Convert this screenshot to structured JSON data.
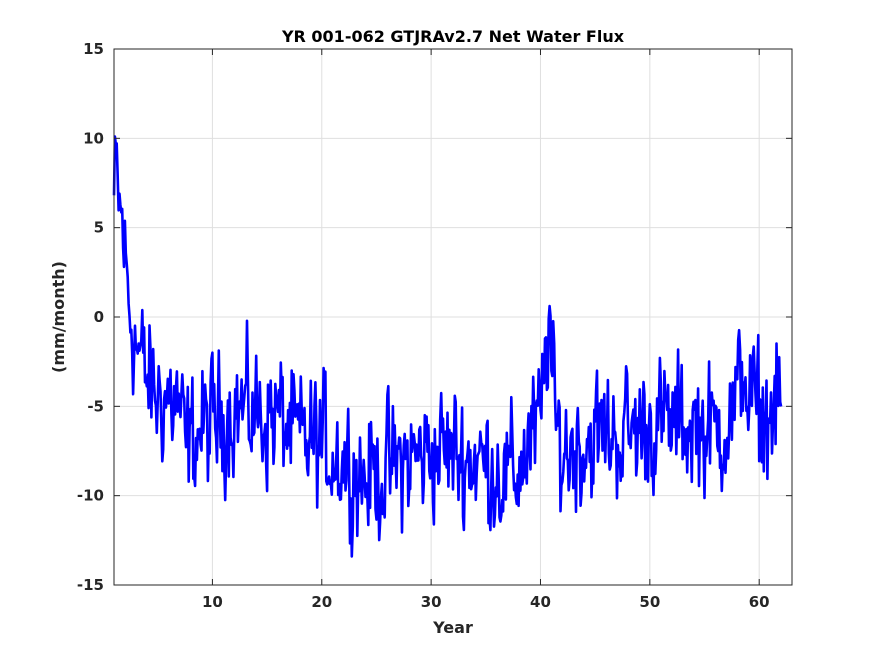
{
  "chart_data": {
    "type": "line",
    "title": "YR 001-062 GTJRAv2.7 Net Water Flux",
    "xlabel": "Year",
    "ylabel": "(mm/month)",
    "xlim": [
      1,
      63
    ],
    "ylim": [
      -15,
      15
    ],
    "xticks": [
      10,
      20,
      30,
      40,
      50,
      60
    ],
    "yticks": [
      -15,
      -10,
      -5,
      0,
      5,
      10,
      15
    ],
    "xtick_labels": [
      "10",
      "20",
      "30",
      "40",
      "50",
      "60"
    ],
    "ytick_labels": [
      "-15",
      "-10",
      "-5",
      "0",
      "5",
      "10",
      "15"
    ],
    "grid": true,
    "series_color": "#0000ff",
    "control_points": {
      "x": [
        1.0,
        1.2,
        1.5,
        1.8,
        2.0,
        2.3,
        2.6,
        3.0,
        3.5,
        4.0,
        4.5,
        5.0,
        6.0,
        7.0,
        7.5,
        8.5,
        10,
        12,
        14,
        16,
        18,
        20,
        22,
        24,
        26,
        28,
        30,
        32,
        34,
        36,
        37,
        38,
        39,
        40.0,
        40.5,
        40.8,
        41.0,
        41.3,
        42,
        44,
        46,
        48,
        50,
        52,
        54,
        56,
        58,
        58.6,
        59,
        60,
        61,
        62
      ],
      "y": [
        6.5,
        8.0,
        6.0,
        5.0,
        3.5,
        1.0,
        0.0,
        -1.5,
        -2.5,
        -3.5,
        -4.0,
        -4.5,
        -4.5,
        -5.0,
        -7.5,
        -6.5,
        -6.0,
        -5.0,
        -5.5,
        -5.5,
        -7.0,
        -7.0,
        -8.0,
        -9.0,
        -8.5,
        -8.0,
        -7.5,
        -7.5,
        -8.0,
        -8.5,
        -9.0,
        -8.5,
        -7.0,
        -6.0,
        -2.0,
        0.5,
        -2.5,
        -6.0,
        -7.5,
        -7.0,
        -6.5,
        -6.5,
        -6.0,
        -6.0,
        -6.0,
        -6.5,
        -5.0,
        -2.0,
        -4.5,
        -5.5,
        -5.5,
        -5.0
      ]
    },
    "noise_amplitude": 2.6,
    "samples_per_year": 12
  }
}
